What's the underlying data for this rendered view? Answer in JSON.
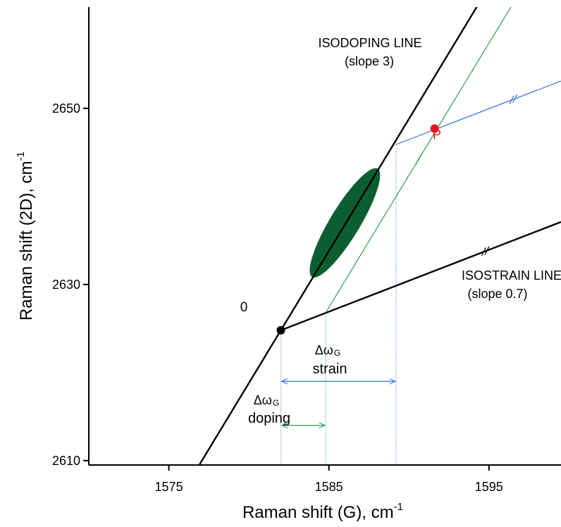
{
  "chart_data": {
    "type": "line",
    "xlabel": "Raman shift (G), cm",
    "xlabel_sup": "-1",
    "ylabel": "Raman shift (2D), cm",
    "ylabel_sup": "-1",
    "xlim": [
      1570,
      1599.5
    ],
    "ylim": [
      2609.5,
      2661.5
    ],
    "xticks": [
      {
        "value": 1575,
        "label": "1575"
      },
      {
        "value": 1585,
        "label": "1585"
      },
      {
        "value": 1595,
        "label": "1595"
      }
    ],
    "yticks": [
      {
        "value": 2610,
        "label": "2610"
      },
      {
        "value": 2630,
        "label": "2630"
      },
      {
        "value": 2650,
        "label": "2650"
      }
    ],
    "colors": {
      "axis": "#000000",
      "isodoping": "#000000",
      "isostrain": "#000000",
      "strain_guide": "#2e9e4f",
      "doping_guide": "#3a6fe0",
      "point_p": "#e8141b",
      "data_cloud": "#0b5e2f"
    },
    "series": [
      {
        "name": "ISODOPING LINE",
        "x": [
          1576.8,
          1597.2
        ],
        "y": [
          2609.2,
          2670.4
        ]
      },
      {
        "name": "ISOSTRAIN LINE",
        "x": [
          1582.0,
          1599.5
        ],
        "y": [
          2624.8,
          2637.1
        ]
      },
      {
        "x": [
          1584.8,
          1599.6
        ],
        "y": [
          2626.8,
          2671.2
        ]
      },
      {
        "x": [
          1589.2,
          1599.5
        ],
        "y": [
          2645.9,
          2653.1
        ]
      }
    ],
    "points": [
      {
        "label": "0",
        "x": 1582.0,
        "y": 2624.8,
        "color": "#000000"
      },
      {
        "label": "P",
        "x": 1591.6,
        "y": 2647.7,
        "color": "#e8141b"
      }
    ],
    "cloud": {
      "cx": 1586.0,
      "cy": 2637.0,
      "angle_along": "isodoping",
      "half_length_x": 2.05,
      "half_width": 2.0
    },
    "drop_lines": [
      {
        "x": 1582.0,
        "y_top": 2624.8,
        "color": "#808080"
      },
      {
        "x": 1584.8,
        "y_top": 2626.8,
        "color": "#2e9e4f"
      },
      {
        "x": 1589.2,
        "y_top": 2645.9,
        "color": "#3a6fe0"
      }
    ],
    "arrows": [
      {
        "name": "strain",
        "from": 1582.0,
        "to": 1589.2,
        "y": 2619.0,
        "color": "#3a6fe0"
      },
      {
        "name": "doping",
        "from": 1582.0,
        "to": 1584.8,
        "y": 2614.0,
        "color": "#2e9e4f"
      }
    ],
    "annotations": {
      "isodoping_title": "ISODOPING LINE",
      "isodoping_slope": "(slope 3)",
      "isostrain_title": "ISOSTRAIN LINE",
      "isostrain_slope": "(slope 0.7)",
      "strain_symbol": "Δω",
      "strain_sub": "G",
      "strain_label": "strain",
      "doping_symbol": "Δω",
      "doping_sub": "G",
      "doping_label": "doping",
      "origin_label": "0",
      "point_label": "P"
    }
  }
}
